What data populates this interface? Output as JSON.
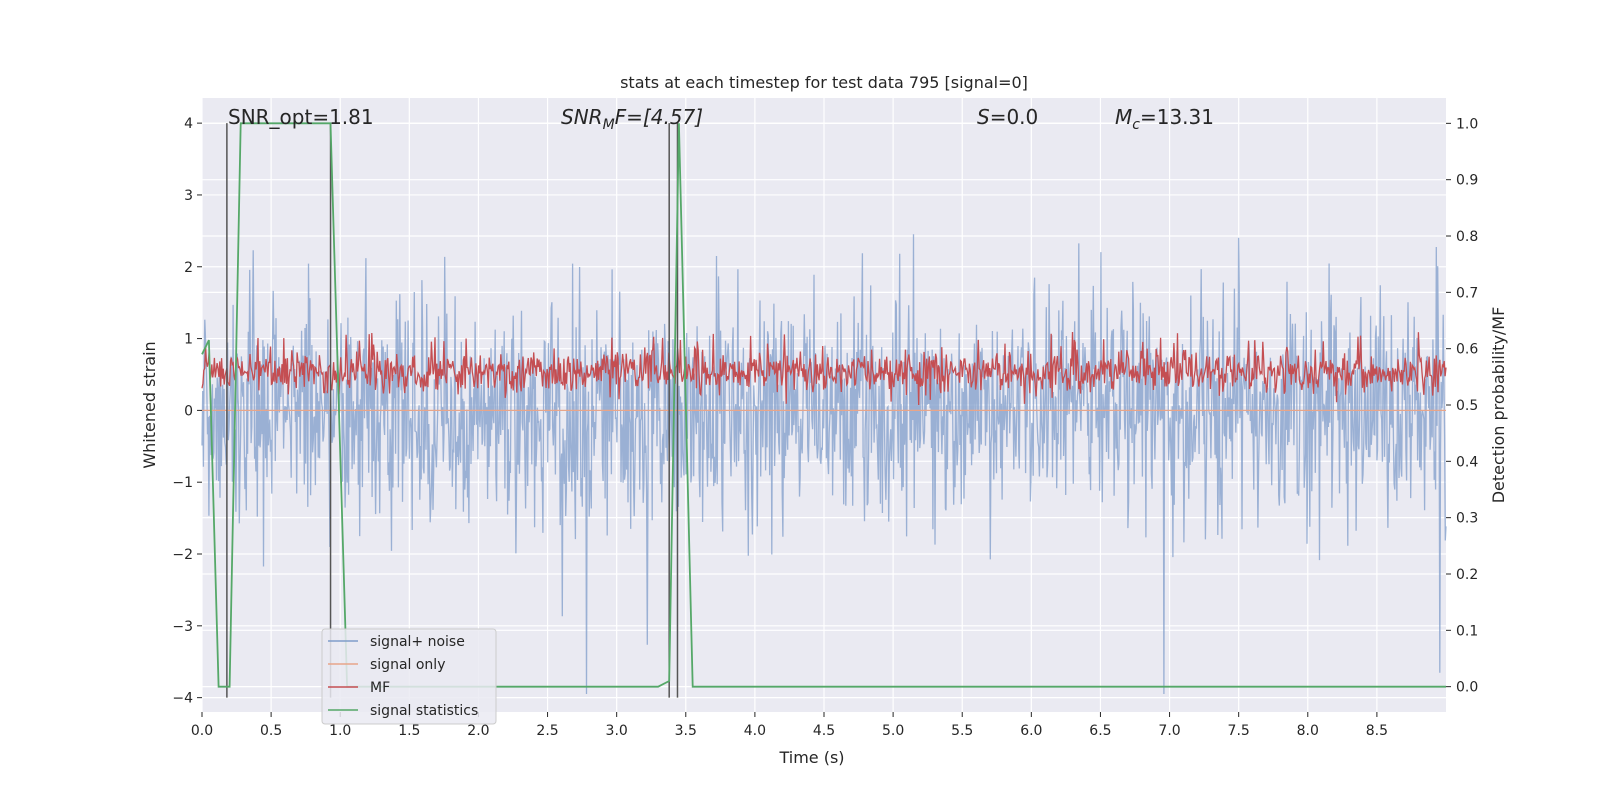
{
  "chart_data": {
    "type": "line",
    "title": "stats at each timestep for test data 795 [signal=0]",
    "xlabel": "Time (s)",
    "ylabel_left": "Whitened strain",
    "ylabel_right": "Detection probability/MF",
    "xlim": [
      0.0,
      9.0
    ],
    "ylim_left": [
      -4.2,
      4.35
    ],
    "ylim_right": [
      -0.045,
      1.045
    ],
    "x_ticks": [
      "0.0",
      "0.5",
      "1.0",
      "1.5",
      "2.0",
      "2.5",
      "3.0",
      "3.5",
      "4.0",
      "4.5",
      "5.0",
      "5.5",
      "6.0",
      "6.5",
      "7.0",
      "7.5",
      "8.0",
      "8.5"
    ],
    "y_ticks_left": [
      "4",
      "3",
      "2",
      "1",
      "0",
      "−1",
      "−2",
      "−3",
      "−4"
    ],
    "y_ticks_right": [
      "1.0",
      "0.9",
      "0.8",
      "0.7",
      "0.6",
      "0.5",
      "0.4",
      "0.3",
      "0.2",
      "0.1",
      "0.0"
    ],
    "grid": true,
    "legend_position": "lower-left",
    "annotations": {
      "snr_opt": "SNR_opt=1.81",
      "snr_mf_main": "SNR",
      "snr_mf_sub": "M",
      "snr_mf_tail": "F=[4.57]",
      "s_main": "S",
      "s_tail": "=0.0",
      "mc_main": "M",
      "mc_sub": "c",
      "mc_tail": "=13.31"
    },
    "series": [
      {
        "name": "signal+ noise",
        "color": "#7f9cc9",
        "axis": "left",
        "description_values": "noise, approx within [-3.9, 4.0]"
      },
      {
        "name": "signal only",
        "color": "#e8a589",
        "axis": "left",
        "values_constant": 0.0
      },
      {
        "name": "MF",
        "color": "#c44e52",
        "axis": "right",
        "range": [
          0.5,
          0.63
        ]
      },
      {
        "name": "signal statistics",
        "color": "#55a868",
        "axis": "right",
        "x": [
          0.0,
          0.05,
          0.12,
          0.2,
          0.28,
          0.93,
          1.05,
          1.15,
          3.3,
          3.38,
          3.45,
          3.55,
          3.58,
          9.0
        ],
        "values": [
          0.59,
          0.615,
          0.0,
          0.0,
          1.0,
          1.0,
          0.0,
          0.0,
          0.0,
          0.01,
          1.0,
          0.0,
          0.0,
          0.0
        ]
      }
    ],
    "vlines": [
      0.18,
      0.93,
      3.38,
      3.44
    ],
    "vline_color": "#555555"
  }
}
